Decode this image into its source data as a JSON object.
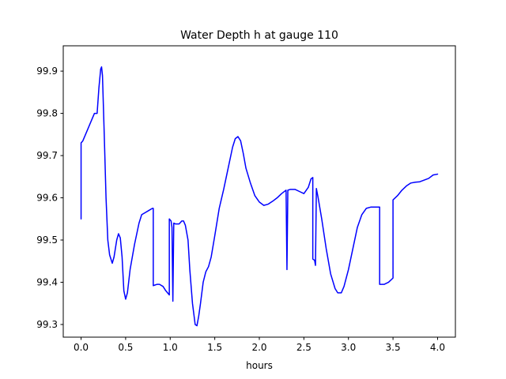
{
  "chart_data": {
    "type": "line",
    "title": "Water Depth h at gauge 110",
    "xlabel": "hours",
    "ylabel": "",
    "xlim": [
      -0.2,
      4.2
    ],
    "ylim": [
      99.27,
      99.96
    ],
    "xticks": [
      0.0,
      0.5,
      1.0,
      1.5,
      2.0,
      2.5,
      3.0,
      3.5,
      4.0
    ],
    "xtick_labels": [
      "0.0",
      "0.5",
      "1.0",
      "1.5",
      "2.0",
      "2.5",
      "3.0",
      "3.5",
      "4.0"
    ],
    "yticks": [
      99.3,
      99.4,
      99.5,
      99.6,
      99.7,
      99.8,
      99.9
    ],
    "ytick_labels": [
      "99.3",
      "99.4",
      "99.5",
      "99.6",
      "99.7",
      "99.8",
      "99.9"
    ],
    "grid": false,
    "series": [
      {
        "color": "#0000ff",
        "points": [
          [
            0.0,
            99.55
          ],
          [
            0.0,
            99.73
          ],
          [
            0.02,
            99.735
          ],
          [
            0.05,
            99.75
          ],
          [
            0.08,
            99.765
          ],
          [
            0.12,
            99.785
          ],
          [
            0.15,
            99.8
          ],
          [
            0.18,
            99.8
          ],
          [
            0.2,
            99.86
          ],
          [
            0.22,
            99.905
          ],
          [
            0.23,
            99.91
          ],
          [
            0.24,
            99.89
          ],
          [
            0.26,
            99.75
          ],
          [
            0.28,
            99.6
          ],
          [
            0.3,
            99.5
          ],
          [
            0.32,
            99.465
          ],
          [
            0.35,
            99.445
          ],
          [
            0.37,
            99.46
          ],
          [
            0.4,
            99.5
          ],
          [
            0.42,
            99.515
          ],
          [
            0.44,
            99.505
          ],
          [
            0.46,
            99.46
          ],
          [
            0.48,
            99.38
          ],
          [
            0.5,
            99.36
          ],
          [
            0.52,
            99.375
          ],
          [
            0.55,
            99.43
          ],
          [
            0.6,
            99.49
          ],
          [
            0.65,
            99.54
          ],
          [
            0.68,
            99.56
          ],
          [
            0.72,
            99.565
          ],
          [
            0.76,
            99.57
          ],
          [
            0.8,
            99.575
          ],
          [
            0.81,
            99.575
          ],
          [
            0.81,
            99.392
          ],
          [
            0.85,
            99.395
          ],
          [
            0.88,
            99.395
          ],
          [
            0.92,
            99.39
          ],
          [
            0.95,
            99.38
          ],
          [
            0.99,
            99.37
          ],
          [
            0.99,
            99.55
          ],
          [
            1.01,
            99.545
          ],
          [
            1.02,
            99.53
          ],
          [
            1.03,
            99.355
          ],
          [
            1.04,
            99.54
          ],
          [
            1.06,
            99.538
          ],
          [
            1.1,
            99.538
          ],
          [
            1.13,
            99.545
          ],
          [
            1.15,
            99.545
          ],
          [
            1.17,
            99.535
          ],
          [
            1.2,
            99.5
          ],
          [
            1.22,
            99.43
          ],
          [
            1.25,
            99.35
          ],
          [
            1.28,
            99.3
          ],
          [
            1.3,
            99.297
          ],
          [
            1.32,
            99.32
          ],
          [
            1.34,
            99.35
          ],
          [
            1.37,
            99.4
          ],
          [
            1.4,
            99.425
          ],
          [
            1.43,
            99.437
          ],
          [
            1.46,
            99.46
          ],
          [
            1.5,
            99.51
          ],
          [
            1.55,
            99.575
          ],
          [
            1.6,
            99.62
          ],
          [
            1.65,
            99.67
          ],
          [
            1.7,
            99.72
          ],
          [
            1.73,
            99.74
          ],
          [
            1.76,
            99.745
          ],
          [
            1.79,
            99.735
          ],
          [
            1.82,
            99.705
          ],
          [
            1.85,
            99.67
          ],
          [
            1.9,
            99.635
          ],
          [
            1.95,
            99.605
          ],
          [
            2.0,
            99.59
          ],
          [
            2.05,
            99.582
          ],
          [
            2.1,
            99.585
          ],
          [
            2.15,
            99.592
          ],
          [
            2.2,
            99.6
          ],
          [
            2.25,
            99.61
          ],
          [
            2.3,
            99.618
          ],
          [
            2.31,
            99.43
          ],
          [
            2.32,
            99.618
          ],
          [
            2.35,
            99.62
          ],
          [
            2.4,
            99.62
          ],
          [
            2.45,
            99.615
          ],
          [
            2.5,
            99.61
          ],
          [
            2.55,
            99.625
          ],
          [
            2.58,
            99.645
          ],
          [
            2.6,
            99.648
          ],
          [
            2.6,
            99.455
          ],
          [
            2.62,
            99.452
          ],
          [
            2.63,
            99.44
          ],
          [
            2.64,
            99.622
          ],
          [
            2.66,
            99.6
          ],
          [
            2.7,
            99.55
          ],
          [
            2.75,
            99.48
          ],
          [
            2.8,
            99.42
          ],
          [
            2.85,
            99.385
          ],
          [
            2.88,
            99.375
          ],
          [
            2.92,
            99.375
          ],
          [
            2.95,
            99.39
          ],
          [
            3.0,
            99.43
          ],
          [
            3.05,
            99.48
          ],
          [
            3.1,
            99.53
          ],
          [
            3.15,
            99.56
          ],
          [
            3.2,
            99.575
          ],
          [
            3.25,
            99.578
          ],
          [
            3.3,
            99.578
          ],
          [
            3.35,
            99.578
          ],
          [
            3.35,
            99.395
          ],
          [
            3.4,
            99.395
          ],
          [
            3.45,
            99.4
          ],
          [
            3.5,
            99.41
          ],
          [
            3.5,
            99.595
          ],
          [
            3.55,
            99.605
          ],
          [
            3.6,
            99.618
          ],
          [
            3.65,
            99.628
          ],
          [
            3.7,
            99.635
          ],
          [
            3.75,
            99.637
          ],
          [
            3.8,
            99.638
          ],
          [
            3.85,
            99.642
          ],
          [
            3.9,
            99.646
          ],
          [
            3.95,
            99.654
          ],
          [
            4.0,
            99.656
          ]
        ]
      }
    ]
  }
}
